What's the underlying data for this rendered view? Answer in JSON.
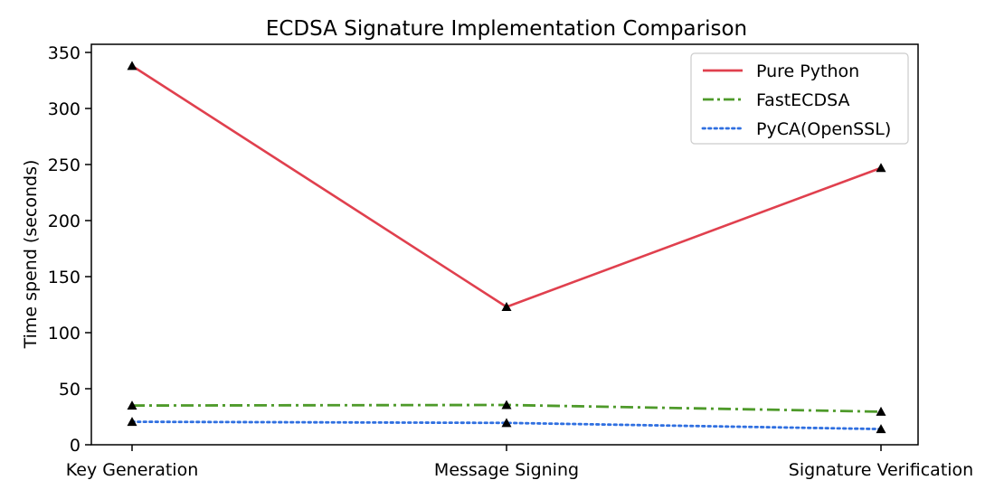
{
  "chart_data": {
    "type": "line",
    "title": "ECDSA Signature Implementation Comparison",
    "xlabel": "",
    "ylabel": "Time spend (seconds)",
    "categories": [
      "Key Generation",
      "Message Signing",
      "Signature Verification"
    ],
    "ylim": [
      0,
      350
    ],
    "yticks": [
      0,
      50,
      100,
      150,
      200,
      250,
      300,
      350
    ],
    "grid": false,
    "legend": "top-right",
    "marker": "triangle",
    "series": [
      {
        "name": "Pure Python",
        "values": [
          338,
          123,
          247
        ],
        "color": "#e0404e",
        "style": "solid"
      },
      {
        "name": "FastECDSA",
        "values": [
          35,
          35.5,
          29.5
        ],
        "color": "#4e9a2a",
        "style": "dash-dot"
      },
      {
        "name": "PyCA(OpenSSL)",
        "values": [
          20.5,
          19.5,
          14
        ],
        "color": "#2f6fe0",
        "style": "dotted"
      }
    ]
  }
}
